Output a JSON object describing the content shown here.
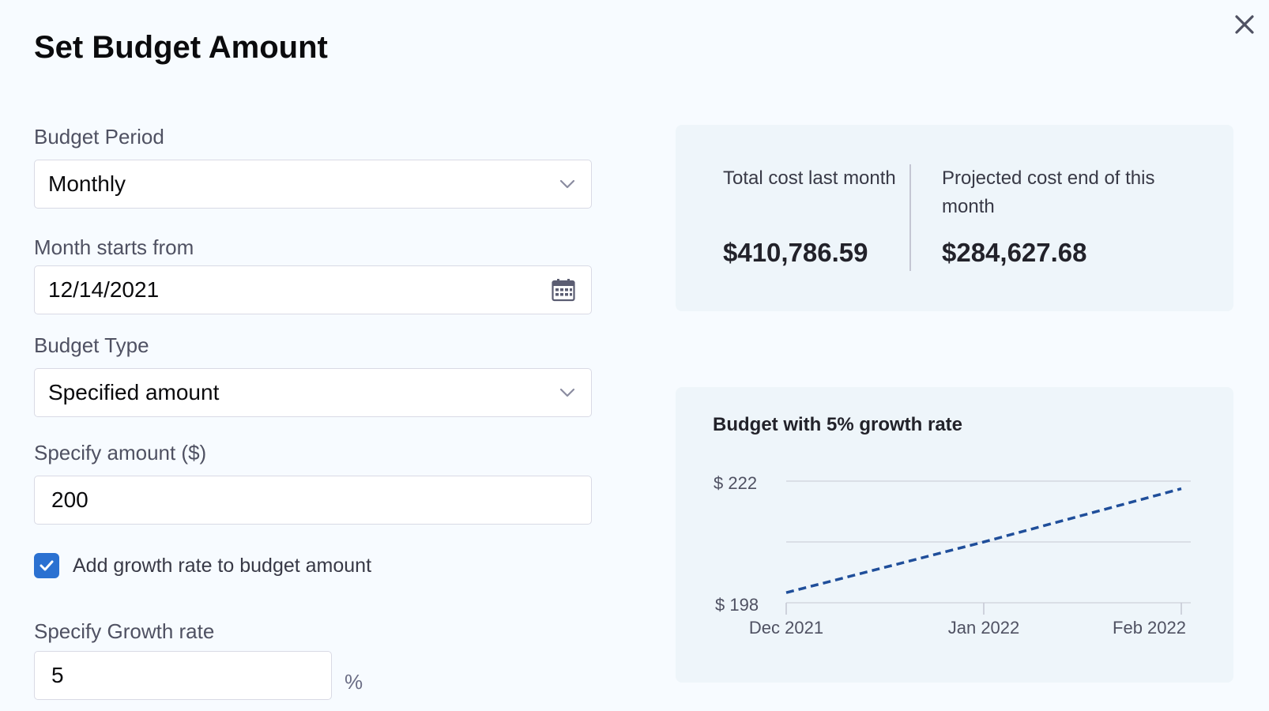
{
  "dialog": {
    "title": "Set Budget Amount"
  },
  "form": {
    "budget_period": {
      "label": "Budget Period",
      "value": "Monthly"
    },
    "month_start": {
      "label": "Month starts from",
      "value": "12/14/2021"
    },
    "budget_type": {
      "label": "Budget Type",
      "value": "Specified amount"
    },
    "amount": {
      "label": "Specify amount ($)",
      "value": "200"
    },
    "growth_checkbox": {
      "label": "Add growth rate to budget amount",
      "checked": true
    },
    "growth_rate": {
      "label": "Specify Growth rate",
      "value": "5",
      "unit": "%"
    }
  },
  "stats": {
    "last_month": {
      "label": "Total cost last month",
      "value": "$410,786.59"
    },
    "projected": {
      "label": "Projected cost end of this month",
      "value": "$284,627.68"
    }
  },
  "colors": {
    "accent": "#2b71d1",
    "line": "#1f4e9a",
    "card_bg": "#eef5fa"
  },
  "chart_data": {
    "type": "line",
    "title": "Budget with 5% growth rate",
    "categories": [
      "Dec 2021",
      "Jan 2022",
      "Feb 2022"
    ],
    "series": [
      {
        "values": [
          200,
          210,
          220.5
        ],
        "style": "dashed"
      }
    ],
    "yticks": [
      "$ 222",
      "$ 198"
    ],
    "ylim": [
      198,
      222
    ],
    "grid": true
  }
}
